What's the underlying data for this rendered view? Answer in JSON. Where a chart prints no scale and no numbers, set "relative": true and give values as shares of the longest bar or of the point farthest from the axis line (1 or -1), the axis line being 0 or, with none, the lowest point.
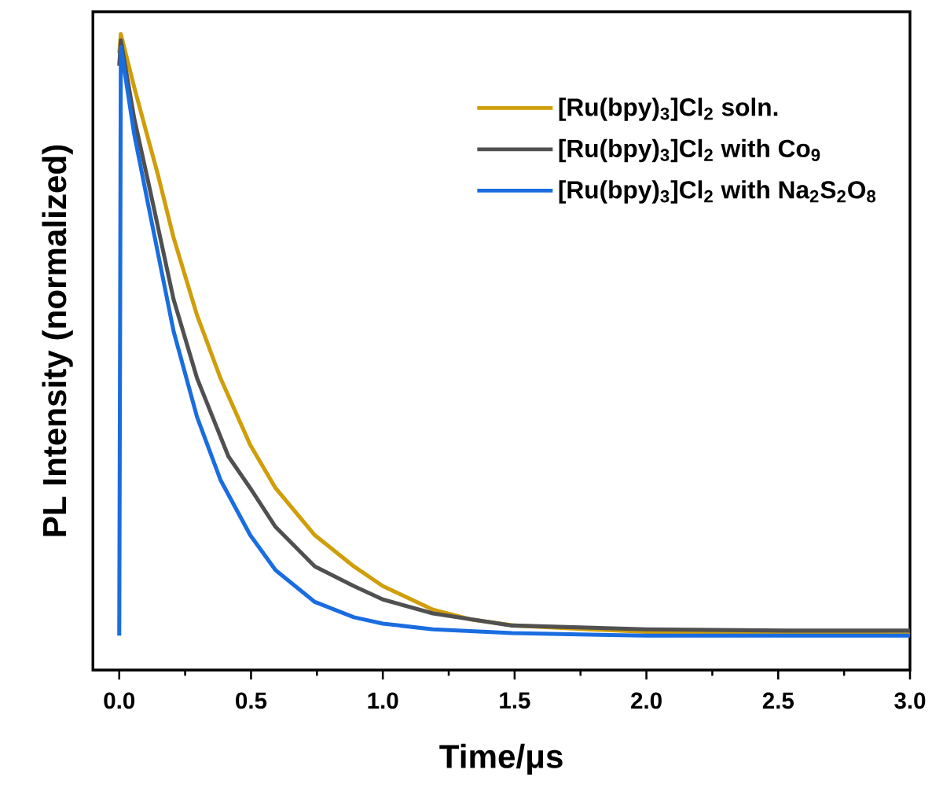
{
  "chart_data": {
    "type": "line",
    "xlabel": "Time/μs",
    "ylabel": "PL Intensity (normalized)",
    "relative": true,
    "xlim": [
      -0.1,
      3.0
    ],
    "xticks": [
      {
        "value": 0,
        "label": "0.0"
      },
      {
        "value": 0.5,
        "label": "0.5"
      },
      {
        "value": 1,
        "label": "1.0"
      },
      {
        "value": 1.5,
        "label": "1.5"
      },
      {
        "value": 2,
        "label": "2.0"
      },
      {
        "value": 2.5,
        "label": "2.5"
      },
      {
        "value": 3,
        "label": "3.0"
      }
    ],
    "tick_labels": "x",
    "legend": "top right",
    "line_style": "solid",
    "series": [
      {
        "name": "[Ru(bpy)$_{3}$]Cl$_{2}$ soln.",
        "color": "#d09e0a",
        "x": [
          0.0,
          0.006,
          0.057,
          0.1,
          0.146,
          0.206,
          0.295,
          0.384,
          0.497,
          0.593,
          0.742,
          0.89,
          1.0,
          1.19,
          1.34,
          1.5,
          1.78,
          2.0,
          2.53,
          3.0
        ],
        "values": [
          0.97,
          1.0,
          0.916,
          0.85,
          0.78,
          0.68,
          0.558,
          0.459,
          0.354,
          0.286,
          0.212,
          0.163,
          0.132,
          0.095,
          0.079,
          0.07,
          0.064,
          0.06,
          0.057,
          0.056
        ]
      },
      {
        "name": "[Ru(bpy)$_{3}$]Cl$_{2}$ with Co$_{9}$",
        "color": "#505050",
        "x": [
          0.0,
          0.006,
          0.057,
          0.116,
          0.206,
          0.295,
          0.414,
          0.497,
          0.593,
          0.742,
          0.89,
          1.0,
          1.19,
          1.49,
          2.0,
          2.53,
          3.0
        ],
        "values": [
          0.95,
          0.99,
          0.867,
          0.756,
          0.583,
          0.459,
          0.336,
          0.286,
          0.225,
          0.163,
          0.132,
          0.111,
          0.089,
          0.07,
          0.064,
          0.062,
          0.062
        ]
      },
      {
        "name": "[Ru(bpy)$_{3}$]Cl$_{2}$ with Na$_{2}$S$_{2}$O$_{8}$",
        "color": "#1a6de0",
        "x": [
          0.0,
          0.003,
          0.006,
          0.057,
          0.116,
          0.206,
          0.295,
          0.384,
          0.497,
          0.593,
          0.742,
          0.89,
          1.0,
          1.19,
          1.49,
          2.0,
          3.0
        ],
        "values": [
          0.054,
          0.5,
          0.98,
          0.842,
          0.719,
          0.533,
          0.398,
          0.299,
          0.212,
          0.157,
          0.107,
          0.083,
          0.073,
          0.064,
          0.058,
          0.054,
          0.054
        ]
      }
    ]
  }
}
